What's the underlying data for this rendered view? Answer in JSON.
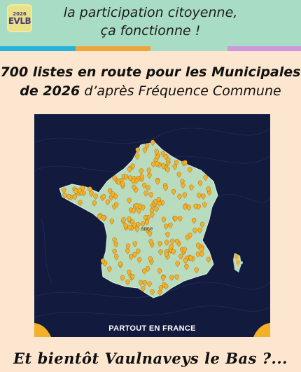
{
  "header": {
    "logo_year": "2026",
    "logo_text": "EVLB",
    "tagline_line1": "la participation citoyenne,",
    "tagline_line2": "ça fonctionne !",
    "stripe_colors": [
      "#23b4d8",
      "#f0a53a",
      "#a8dcc4",
      "#cc99de"
    ],
    "background": "#a8dcc4"
  },
  "headline": {
    "bold_part1": "700 listes en route pour les Municipales",
    "bold_part2": "de 2026",
    "italic_part": "d’après Fréquence Commune"
  },
  "map": {
    "caption": "PARTOUT EN FRANCE",
    "city_label": "ance",
    "marker_color": "#f3b12a",
    "land_color": "#b9dcbf",
    "sea_color": "#121a3d",
    "marker_icon": "map-pin-icon"
  },
  "footer": {
    "text": "Et bientôt Vaulnaveys le Bas ?..."
  }
}
